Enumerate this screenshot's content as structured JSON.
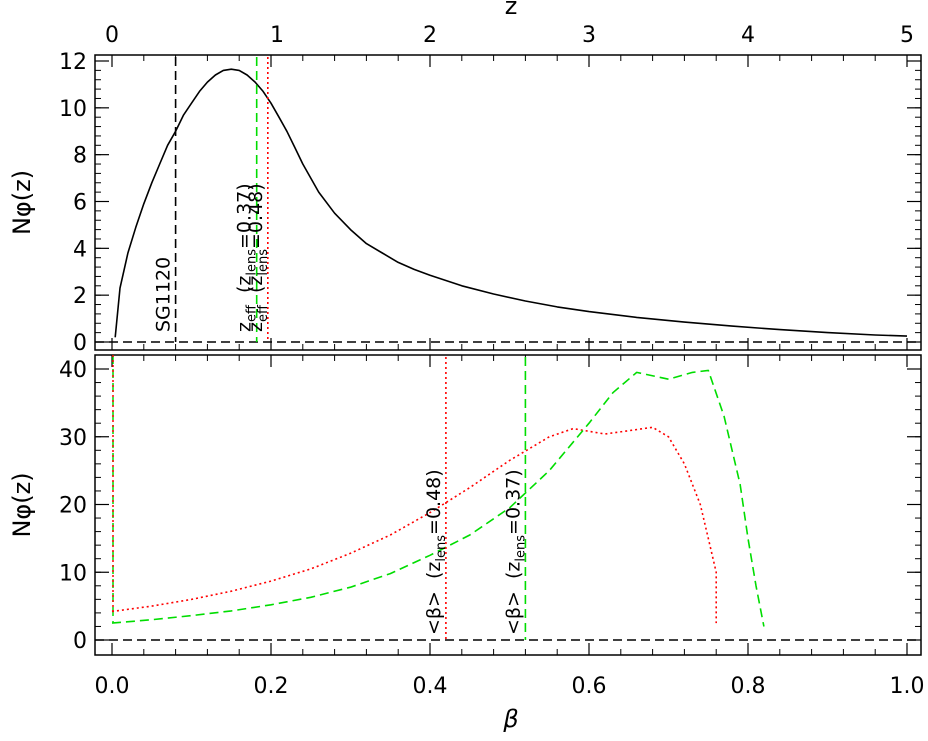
{
  "chart_data": [
    {
      "panel": "top",
      "type": "line",
      "title": "",
      "xlabel": "z",
      "ylabel": "Nφ(z)",
      "xlim": [
        0,
        5
      ],
      "ylim": [
        0,
        12
      ],
      "x_ticks": [
        0,
        1,
        2,
        3,
        4,
        5
      ],
      "x_tick_labels": [
        "0",
        "1",
        "2",
        "3",
        "4",
        "5"
      ],
      "y_ticks": [
        0,
        2,
        4,
        6,
        8,
        10,
        12
      ],
      "y_tick_labels": [
        "0",
        "2",
        "4",
        "6",
        "8",
        "10",
        "12"
      ],
      "grid": false,
      "series": [
        {
          "color": "#000000",
          "style": "solid",
          "x": [
            0.02,
            0.05,
            0.1,
            0.15,
            0.2,
            0.25,
            0.3,
            0.35,
            0.4,
            0.45,
            0.5,
            0.55,
            0.6,
            0.65,
            0.7,
            0.75,
            0.8,
            0.85,
            0.9,
            0.95,
            1.0,
            1.05,
            1.1,
            1.15,
            1.2,
            1.3,
            1.4,
            1.5,
            1.6,
            1.7,
            1.8,
            1.9,
            2.0,
            2.2,
            2.4,
            2.6,
            2.8,
            3.0,
            3.3,
            3.6,
            3.9,
            4.2,
            4.5,
            4.8,
            5.0
          ],
          "y": [
            0.2,
            2.3,
            3.8,
            4.9,
            5.9,
            6.8,
            7.6,
            8.4,
            9.0,
            9.7,
            10.2,
            10.7,
            11.1,
            11.4,
            11.6,
            11.65,
            11.6,
            11.4,
            11.1,
            10.7,
            10.2,
            9.6,
            9.0,
            8.3,
            7.6,
            6.4,
            5.5,
            4.8,
            4.2,
            3.8,
            3.4,
            3.1,
            2.85,
            2.4,
            2.05,
            1.75,
            1.5,
            1.3,
            1.05,
            0.85,
            0.68,
            0.53,
            0.4,
            0.3,
            0.25
          ]
        }
      ],
      "annotations": [
        {
          "text": "SG1120",
          "x": 0.4,
          "color": "#000000",
          "style": "dashed"
        },
        {
          "text": "z",
          "sub": "eff",
          "text2": "(z",
          "sub2": "lens",
          "text3": "=0.37)",
          "x": 0.91,
          "color": "#00dd00",
          "style": "dashed"
        },
        {
          "text": "z",
          "sub": "eff",
          "text2": "(z",
          "sub2": "lens",
          "text3": "=0.48)",
          "x": 0.98,
          "color": "#ff0000",
          "style": "dotted"
        }
      ],
      "baseline": {
        "y": 0,
        "style": "dashed"
      }
    },
    {
      "panel": "bottom",
      "type": "line",
      "title": "",
      "xlabel": "β",
      "ylabel": "Nφ(z)",
      "xlim": [
        0,
        1
      ],
      "ylim": [
        -2,
        42
      ],
      "x_ticks": [
        0.0,
        0.2,
        0.4,
        0.6,
        0.8,
        1.0
      ],
      "x_tick_labels": [
        "0.0",
        "0.2",
        "0.4",
        "0.6",
        "0.8",
        "1.0"
      ],
      "y_ticks": [
        0,
        10,
        20,
        30,
        40
      ],
      "y_tick_labels": [
        "0",
        "10",
        "20",
        "30",
        "40"
      ],
      "grid": false,
      "series": [
        {
          "color": "#ff0000",
          "style": "dotted",
          "x": [
            0.0,
            0.05,
            0.1,
            0.15,
            0.2,
            0.25,
            0.3,
            0.35,
            0.4,
            0.45,
            0.5,
            0.55,
            0.58,
            0.6,
            0.62,
            0.65,
            0.68,
            0.7,
            0.72,
            0.74,
            0.75,
            0.76,
            0.76
          ],
          "y": [
            4.2,
            5.0,
            6.0,
            7.2,
            8.7,
            10.5,
            12.8,
            15.5,
            18.8,
            22.5,
            26.5,
            30.0,
            31.2,
            30.8,
            30.4,
            30.9,
            31.4,
            30.0,
            26.0,
            20.0,
            15.0,
            10.0,
            2.5
          ]
        },
        {
          "color": "#00dd00",
          "style": "dashed",
          "x": [
            0.0,
            0.05,
            0.1,
            0.15,
            0.2,
            0.25,
            0.3,
            0.35,
            0.4,
            0.45,
            0.5,
            0.55,
            0.6,
            0.63,
            0.66,
            0.7,
            0.73,
            0.75,
            0.77,
            0.79,
            0.8,
            0.81,
            0.82
          ],
          "y": [
            2.5,
            3.0,
            3.6,
            4.3,
            5.2,
            6.3,
            7.8,
            9.8,
            12.5,
            15.5,
            19.5,
            25.0,
            32.0,
            36.5,
            39.5,
            38.5,
            39.5,
            39.8,
            33.0,
            23.0,
            15.0,
            8.0,
            2.0
          ]
        }
      ],
      "annotations": [
        {
          "text": "<β>",
          "text2": "(z",
          "sub2": "lens",
          "text3": "=0.48)",
          "x": 0.42,
          "color": "#ff0000",
          "style": "dotted"
        },
        {
          "text": "<β>",
          "text2": "(z",
          "sub2": "lens",
          "text3": "=0.37)",
          "x": 0.52,
          "color": "#00dd00",
          "style": "dashed"
        }
      ],
      "baseline": {
        "y": 0,
        "style": "dashed"
      },
      "left_lines": [
        {
          "x": 0.0,
          "color": "#00dd00",
          "style": "dashed"
        },
        {
          "x": 0.0,
          "color": "#ff0000",
          "style": "dotted"
        }
      ]
    }
  ]
}
